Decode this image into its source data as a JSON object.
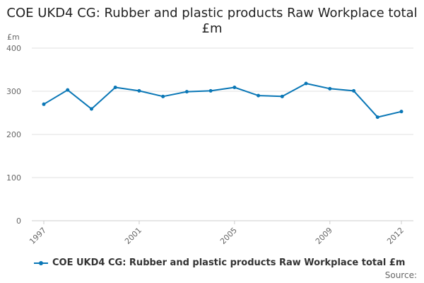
{
  "chart_data": {
    "type": "line",
    "title": "COE UKD4 CG: Rubber and plastic products Raw Workplace total £m",
    "ylabel": "£m",
    "xlabel": "",
    "ylim": [
      0,
      400
    ],
    "yticks": [
      0,
      100,
      200,
      300,
      400
    ],
    "x": [
      1997,
      1998,
      1999,
      2000,
      2001,
      2002,
      2003,
      2004,
      2005,
      2006,
      2007,
      2008,
      2009,
      2010,
      2011,
      2012
    ],
    "xticks": [
      1997,
      2001,
      2005,
      2009,
      2012
    ],
    "series": [
      {
        "name": "COE UKD4 CG: Rubber and plastic products Raw Workplace total £m",
        "values": [
          270,
          303,
          259,
          309,
          301,
          288,
          299,
          301,
          309,
          290,
          288,
          318,
          306,
          301,
          240,
          253
        ],
        "color": "#0a77b6"
      }
    ],
    "grid": true,
    "legend": "bottom-left"
  },
  "footer": {
    "source": "Source:"
  }
}
